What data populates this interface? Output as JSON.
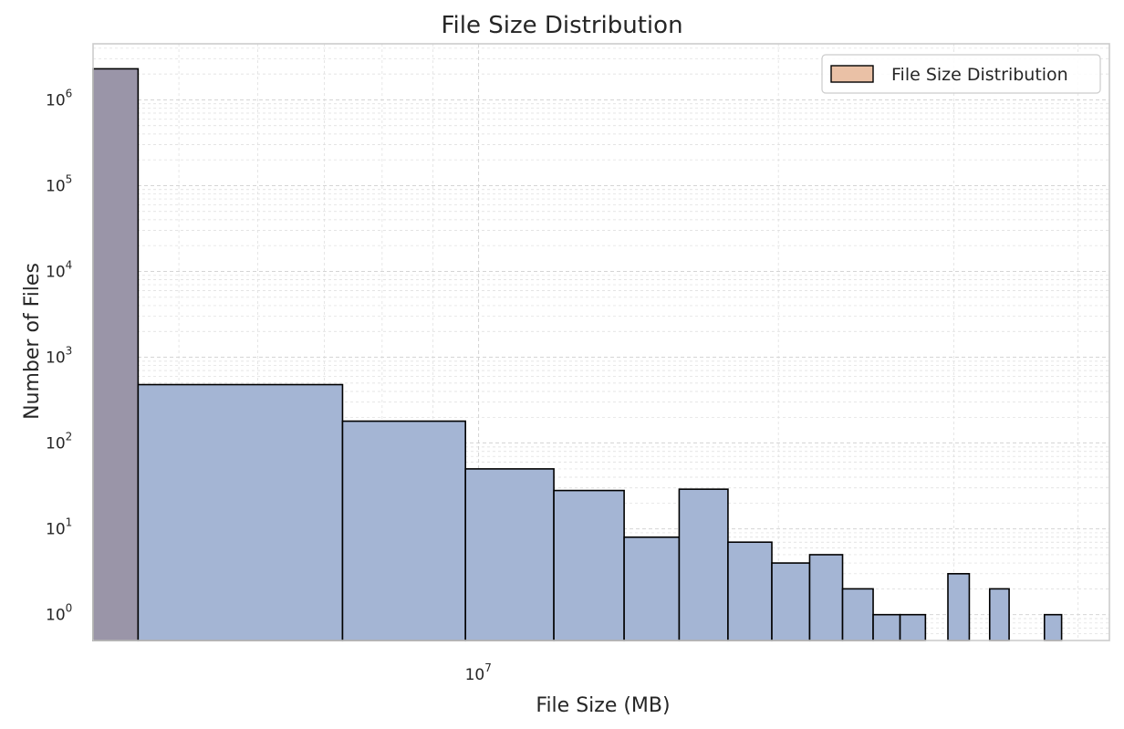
{
  "chart_data": {
    "type": "bar",
    "title": "File Size Distribution",
    "xlabel": "File Size (MB)",
    "ylabel": "Number of Files",
    "xscale": "log",
    "yscale": "log",
    "xlim": [
      4100000,
      43000000
    ],
    "ylim": [
      0.5,
      4500000
    ],
    "grid": true,
    "legend": {
      "position": "top-right",
      "entries": [
        "File Size Distribution"
      ]
    },
    "legend_patch_color": "#eac1a6",
    "x_ticks": [
      {
        "base": "10",
        "exp": "7",
        "value": 10000000
      }
    ],
    "y_ticks": [
      {
        "base": "10",
        "exp": "0",
        "value": 1
      },
      {
        "base": "10",
        "exp": "1",
        "value": 10
      },
      {
        "base": "10",
        "exp": "2",
        "value": 100
      },
      {
        "base": "10",
        "exp": "3",
        "value": 1000
      },
      {
        "base": "10",
        "exp": "4",
        "value": 10000
      },
      {
        "base": "10",
        "exp": "5",
        "value": 100000
      },
      {
        "base": "10",
        "exp": "6",
        "value": 1000000
      }
    ],
    "series": [
      {
        "name": "File Size Distribution",
        "bins": [
          {
            "x0": 4100000,
            "x1": 4550000,
            "count": 2300000,
            "color": "#9a95a8"
          },
          {
            "x0": 4550000,
            "x1": 7300000,
            "count": 480,
            "color": "#a4b5d4"
          },
          {
            "x0": 7300000,
            "x1": 9700000,
            "count": 180,
            "color": "#a4b5d4"
          },
          {
            "x0": 9700000,
            "x1": 11900000,
            "count": 50,
            "color": "#a4b5d4"
          },
          {
            "x0": 11900000,
            "x1": 14000000,
            "count": 28,
            "color": "#a4b5d4"
          },
          {
            "x0": 14000000,
            "x1": 15900000,
            "count": 8,
            "color": "#a4b5d4"
          },
          {
            "x0": 15900000,
            "x1": 17800000,
            "count": 29,
            "color": "#a4b5d4"
          },
          {
            "x0": 17800000,
            "x1": 19700000,
            "count": 7,
            "color": "#a4b5d4"
          },
          {
            "x0": 19700000,
            "x1": 21500000,
            "count": 4,
            "color": "#a4b5d4"
          },
          {
            "x0": 21500000,
            "x1": 23200000,
            "count": 5,
            "color": "#a4b5d4"
          },
          {
            "x0": 23200000,
            "x1": 24900000,
            "count": 2,
            "color": "#a4b5d4"
          },
          {
            "x0": 24900000,
            "x1": 26500000,
            "count": 1,
            "color": "#a4b5d4"
          },
          {
            "x0": 26500000,
            "x1": 28100000,
            "count": 1,
            "color": "#a4b5d4"
          },
          {
            "x0": 29600000,
            "x1": 31100000,
            "count": 3,
            "color": "#a4b5d4"
          },
          {
            "x0": 32600000,
            "x1": 34100000,
            "count": 2,
            "color": "#a4b5d4"
          },
          {
            "x0": 37000000,
            "x1": 38500000,
            "count": 1,
            "color": "#a4b5d4"
          }
        ]
      }
    ]
  }
}
